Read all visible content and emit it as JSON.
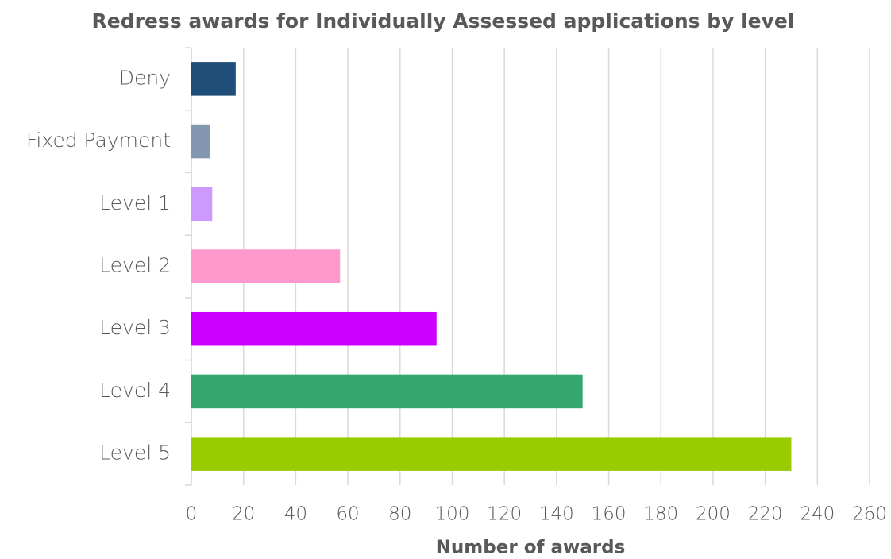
{
  "chart_data": {
    "type": "barh",
    "title": "Redress awards for Individually Assessed applications by level",
    "categories": [
      "Deny",
      "Fixed Payment",
      "Level 1",
      "Level 2",
      "Level 3",
      "Level 4",
      "Level 5"
    ],
    "values": [
      17,
      7,
      8,
      57,
      94,
      150,
      230
    ],
    "colors": [
      "#1f4e79",
      "#8497b0",
      "#cc99ff",
      "#ff99cc",
      "#cc00ff",
      "#35a86e",
      "#99cc00"
    ],
    "xlabel": "Number of awards",
    "xlim": [
      0,
      260
    ],
    "xticks": [
      0,
      20,
      40,
      60,
      80,
      100,
      120,
      140,
      160,
      180,
      200,
      220,
      240,
      260
    ],
    "grid": true
  }
}
